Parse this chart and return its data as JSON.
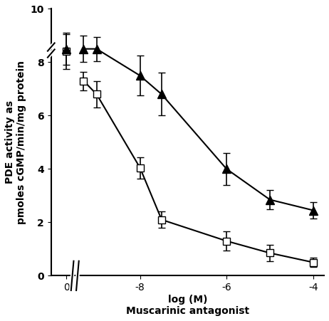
{
  "title": "",
  "xlabel": "log (M)\nMuscarinic antagonist",
  "ylabel": "PDE activity as\npmoles cGMP/min/mg protein",
  "ylim": [
    0,
    10
  ],
  "yticks": [
    0,
    2,
    4,
    6,
    8,
    10
  ],
  "meth_x_plot": [
    -9.3,
    -9.0,
    -8.0,
    -7.5,
    -6.0,
    -5.0,
    -4.0
  ],
  "meth_y": [
    7.3,
    6.8,
    4.05,
    2.1,
    1.3,
    0.85,
    0.5
  ],
  "meth_yerr": [
    0.35,
    0.5,
    0.4,
    0.3,
    0.35,
    0.3,
    0.18
  ],
  "damp_x_plot": [
    -9.3,
    -9.0,
    -8.0,
    -7.5,
    -6.0,
    -5.0,
    -4.0
  ],
  "damp_y": [
    8.5,
    8.5,
    7.5,
    6.8,
    4.0,
    2.85,
    2.45
  ],
  "damp_yerr": [
    0.5,
    0.45,
    0.75,
    0.8,
    0.6,
    0.35,
    0.3
  ],
  "ctrl_x": -9.7,
  "ctrl_meth_y": 8.4,
  "ctrl_meth_yerr": 0.65,
  "ctrl_damp_y": 8.5,
  "ctrl_damp_yerr": 0.6,
  "x_control_pos": -9.7,
  "x_axis_start": -9.5,
  "xlim_left": -10.05,
  "xlim_right": -3.75,
  "xtick_positions": [
    -9.7,
    -8.0,
    -6.0,
    -4.0
  ],
  "xtick_labels": [
    "0",
    "-8",
    "-6",
    "-4"
  ],
  "line_color": "#000000",
  "bg_color": "#ffffff"
}
